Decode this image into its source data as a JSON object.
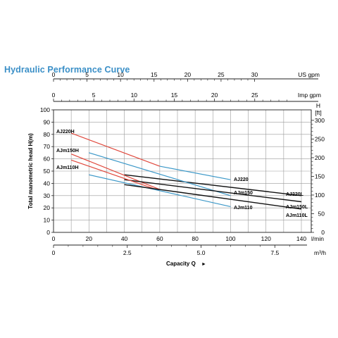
{
  "title": "Hydraulic Performance Curve",
  "colors": {
    "title": "#3a8fc7",
    "red": "#e0483c",
    "blue": "#3c98c8",
    "black": "#111111",
    "grid": "#9a9a9a"
  },
  "axes": {
    "us_gpm": {
      "label": "US gpm",
      "ticks": [
        "0",
        "5",
        "10",
        "15",
        "20",
        "25",
        "30"
      ]
    },
    "imp_gpm": {
      "label": "Imp gpm",
      "ticks": [
        "0",
        "5",
        "10",
        "15",
        "20",
        "25"
      ]
    },
    "left": {
      "label": "Total manometric head H(m)",
      "ticks": [
        "0",
        "10",
        "20",
        "30",
        "40",
        "50",
        "60",
        "70",
        "80",
        "90",
        "100"
      ]
    },
    "right": {
      "unit_line1": "H",
      "unit_line2": "[ft]",
      "ticks": [
        "0",
        "50",
        "100",
        "150",
        "200",
        "250",
        "300"
      ]
    },
    "lpm": {
      "label": "l/min",
      "ticks": [
        "0",
        "20",
        "40",
        "60",
        "80",
        "100",
        "120",
        "140"
      ]
    },
    "m3h": {
      "label": "m³/h",
      "ticks": [
        "0",
        "2.5",
        "5.0",
        "7.5"
      ]
    },
    "x_label": "Capacity Q",
    "x_arrow": "►"
  },
  "chart_data": {
    "type": "line",
    "title": "Hydraulic Performance Curve",
    "xlabel": "Capacity Q",
    "ylabel": "Total manometric head H(m)",
    "x_unit": "l/min",
    "xlim": [
      0,
      145
    ],
    "ylim": [
      0,
      100
    ],
    "grid": true,
    "series": [
      {
        "name": "AJ220H",
        "color": "red",
        "x": [
          10,
          60
        ],
        "y": [
          81,
          54
        ]
      },
      {
        "name": "AJ220",
        "color": "blue",
        "x": [
          60,
          100
        ],
        "y": [
          54,
          43
        ]
      },
      {
        "name": "AJ220L",
        "color": "black",
        "x": [
          40,
          140
        ],
        "y": [
          47,
          30
        ]
      },
      {
        "name": "AJm150H",
        "color": "red",
        "x": [
          10,
          60
        ],
        "y": [
          64,
          35
        ]
      },
      {
        "name": "AJm150",
        "color": "blue",
        "x": [
          20,
          100
        ],
        "y": [
          65,
          30
        ]
      },
      {
        "name": "AJm150L",
        "color": "black",
        "x": [
          40,
          140
        ],
        "y": [
          43,
          25
        ]
      },
      {
        "name": "AJm110H",
        "color": "red",
        "x": [
          10,
          60
        ],
        "y": [
          59,
          34
        ]
      },
      {
        "name": "AJm110",
        "color": "blue",
        "x": [
          20,
          100
        ],
        "y": [
          47,
          21
        ]
      },
      {
        "name": "AJm110L",
        "color": "black",
        "x": [
          40,
          140
        ],
        "y": [
          39,
          19
        ]
      }
    ]
  }
}
